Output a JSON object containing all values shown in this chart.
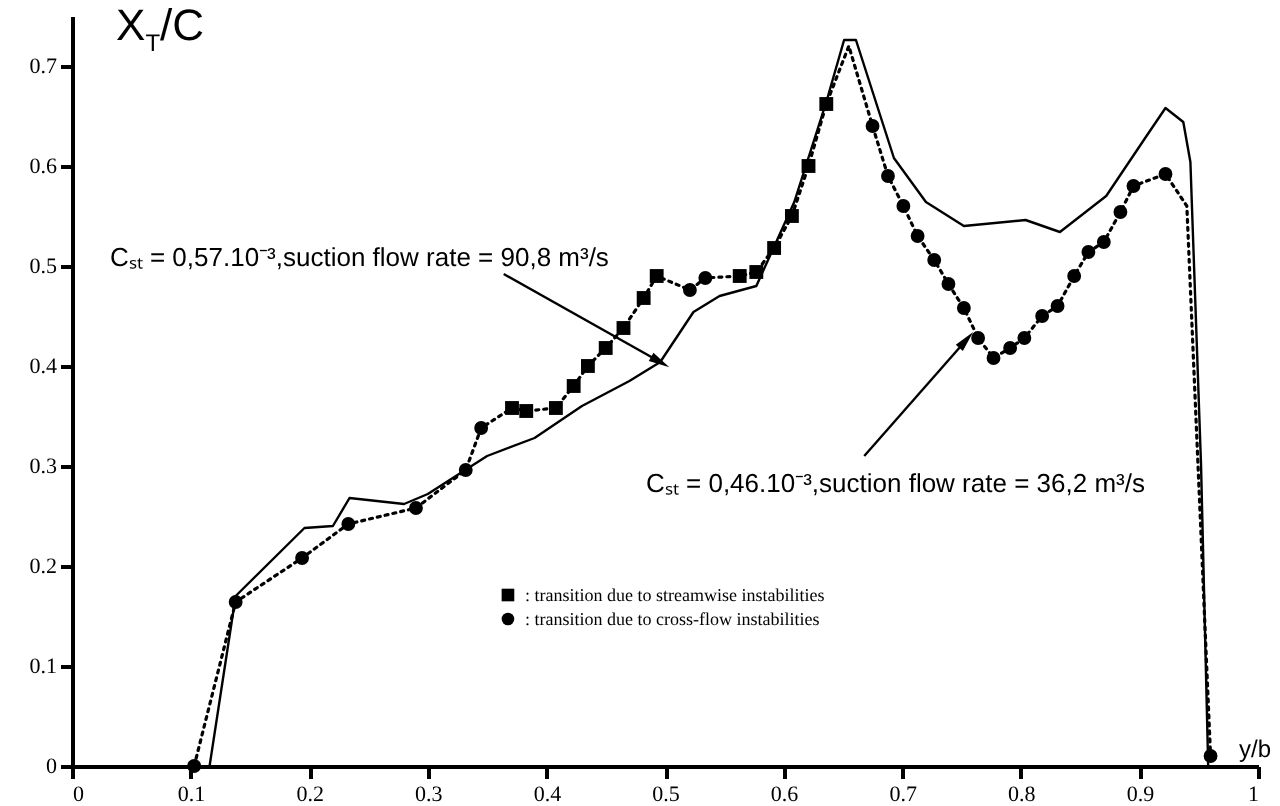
{
  "chart_data": {
    "type": "line",
    "ylabel": "X$_{T}$/C",
    "xlabel": "y/b",
    "xlim": [
      0,
      1
    ],
    "xticks": [
      0,
      0.1,
      0.2,
      0.3,
      0.4,
      0.5,
      0.6,
      0.7,
      0.8,
      0.9,
      1
    ],
    "ylim": [
      0,
      0.75
    ],
    "yticks": [
      0,
      0.1,
      0.2,
      0.3,
      0.4,
      0.5,
      0.6,
      0.7
    ],
    "grid": false,
    "legend": "bottom",
    "series": [
      {
        "color": "#000000",
        "line_style": "solid",
        "x": [
          0.116,
          0.138,
          0.196,
          0.22,
          0.234,
          0.28,
          0.3,
          0.35,
          0.39,
          0.43,
          0.47,
          0.496,
          0.524,
          0.546,
          0.577,
          0.609,
          0.636,
          0.651,
          0.661,
          0.693,
          0.72,
          0.752,
          0.804,
          0.833,
          0.872,
          0.906,
          0.922,
          0.937,
          0.943,
          0.952,
          0.958
        ],
        "values": [
          0,
          0.17,
          0.238,
          0.24,
          0.268,
          0.262,
          0.272,
          0.31,
          0.328,
          0.36,
          0.385,
          0.404,
          0.454,
          0.47,
          0.48,
          0.564,
          0.664,
          0.726,
          0.726,
          0.608,
          0.564,
          0.54,
          0.546,
          0.534,
          0.57,
          0.63,
          0.658,
          0.644,
          0.604,
          0.3,
          0
        ]
      },
      {
        "color": "#000000",
        "line_style": "dotted",
        "x": [
          0.103,
          0.138,
          0.194,
          0.233,
          0.29,
          0.332,
          0.345,
          0.371,
          0.383,
          0.408,
          0.423,
          0.435,
          0.45,
          0.465,
          0.482,
          0.493,
          0.521,
          0.534,
          0.563,
          0.577,
          0.592,
          0.607,
          0.621,
          0.636,
          0.655,
          0.675,
          0.688,
          0.701,
          0.713,
          0.727,
          0.739,
          0.752,
          0.764,
          0.777,
          0.791,
          0.803,
          0.818,
          0.831,
          0.845,
          0.857,
          0.87,
          0.884,
          0.895,
          0.922,
          0.94,
          0.96
        ],
        "values": [
          0,
          0.164,
          0.208,
          0.242,
          0.258,
          0.296,
          0.338,
          0.358,
          0.355,
          0.358,
          0.38,
          0.4,
          0.418,
          0.438,
          0.468,
          0.49,
          0.476,
          0.488,
          0.49,
          0.494,
          0.518,
          0.55,
          0.6,
          0.662,
          0.72,
          0.64,
          0.59,
          0.56,
          0.53,
          0.506,
          0.482,
          0.458,
          0.428,
          0.408,
          0.418,
          0.428,
          0.45,
          0.46,
          0.49,
          0.514,
          0.524,
          0.554,
          0.58,
          0.592,
          0.56,
          0.01
        ]
      },
      {
        "type": "scatter",
        "name": ": transition due to streamwise instabilities",
        "color": "#000000",
        "marker": "square",
        "x": [
          0.371,
          0.383,
          0.408,
          0.423,
          0.435,
          0.45,
          0.465,
          0.482,
          0.493,
          0.563,
          0.577,
          0.592,
          0.607,
          0.621,
          0.636
        ],
        "values": [
          0.358,
          0.355,
          0.358,
          0.38,
          0.4,
          0.418,
          0.438,
          0.468,
          0.49,
          0.49,
          0.494,
          0.518,
          0.55,
          0.6,
          0.662
        ]
      },
      {
        "type": "scatter",
        "name": ": transition due to cross-flow instabilities",
        "color": "#000000",
        "marker": "circle",
        "x": [
          0.103,
          0.138,
          0.194,
          0.233,
          0.29,
          0.332,
          0.345,
          0.521,
          0.534,
          0.675,
          0.688,
          0.701,
          0.713,
          0.727,
          0.739,
          0.752,
          0.764,
          0.777,
          0.791,
          0.803,
          0.818,
          0.831,
          0.845,
          0.857,
          0.87,
          0.884,
          0.895,
          0.922,
          0.96
        ],
        "values": [
          0,
          0.164,
          0.208,
          0.242,
          0.258,
          0.296,
          0.338,
          0.476,
          0.488,
          0.64,
          0.59,
          0.56,
          0.53,
          0.506,
          0.482,
          0.458,
          0.428,
          0.408,
          0.418,
          0.428,
          0.45,
          0.46,
          0.49,
          0.514,
          0.524,
          0.554,
          0.58,
          0.592,
          0.01
        ]
      }
    ],
    "annotations": [
      {
        "text": "Cₛₜ = 0,57.10⁻³,suction flow rate = 90,8 m³/s",
        "x": 0.496,
        "y": 0.404
      },
      {
        "text": "Cₛₜ = 0,46.10⁻³,suction flow rate = 36,2 m³/s",
        "x": 0.754,
        "y": 0.426
      }
    ]
  }
}
